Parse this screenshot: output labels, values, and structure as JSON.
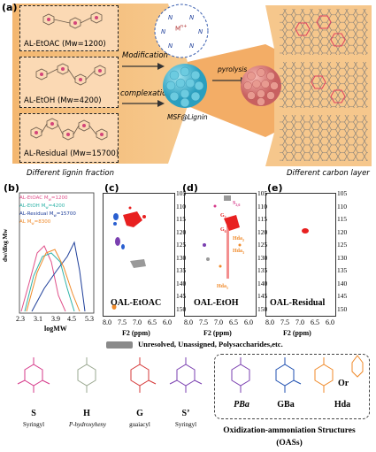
{
  "panel_a": {
    "letter": "(a)",
    "fractions": [
      {
        "label": "AL-EtOAC (Mw=1200)"
      },
      {
        "label": "AL-EtOH (Mw=4200)"
      },
      {
        "label": "AL-Residual (Mw=15700)"
      }
    ],
    "fraction_caption": "Different lignin fraction",
    "modification": "Modification",
    "complexation": "complexation",
    "pyrolysis": "pyrolysis",
    "msf_label": "MSF@Lignin",
    "metal_label": "M",
    "metal_charge": "n+",
    "carbon_caption": "Different carbon layer"
  },
  "panel_b": {
    "letter": "(b)",
    "ylabel": "dw/dlog Mw",
    "xlabel": "logMW",
    "ticks": [
      "2.3",
      "3.1",
      "3.9",
      "4.5",
      "5.3"
    ],
    "legend": [
      {
        "name": "AL-EtOAC",
        "sub": "M",
        "subsub": "w",
        "val": "=1200",
        "color": "#e0508a"
      },
      {
        "name": "AL-EtOH",
        "sub": "M",
        "subsub": "w",
        "val": "=4200",
        "color": "#2fb3a8"
      },
      {
        "name": "AL-Residual",
        "sub": "M",
        "subsub": "w",
        "val": "=15700",
        "color": "#1f3f9a"
      },
      {
        "name": "AL",
        "sub": "M",
        "subsub": "w",
        "val": "=8300",
        "color": "#f08a2a"
      }
    ]
  },
  "panel_c": {
    "letter": "(c)",
    "title": "OAL-EtOAC",
    "xlabel": "F2 (ppm)",
    "xticks": [
      "8.0",
      "7.0",
      "6.0"
    ],
    "xticks_half": [
      "7.5",
      "6.5"
    ]
  },
  "panel_d": {
    "letter": "(d)",
    "title": "OAL-EtOH",
    "xlabel": "F2 (ppm)",
    "labels": {
      "s26": "S",
      "s26_sub": "2,6",
      "g2": "G",
      "g2_sub": "2",
      "g6": "G",
      "g6_sub": "6",
      "hda2": "Hda",
      "hda2_sub": "2",
      "hda1": "Hda",
      "hda1_sub": "1",
      "hda3": "Hda",
      "hda3_sub": "3"
    }
  },
  "panel_e": {
    "letter": "(e)",
    "title": "OAL-Residual",
    "xlabel": "F2 (ppm)"
  },
  "nmr_yticks": [
    "105",
    "110",
    "115",
    "120",
    "125",
    "130",
    "135",
    "140",
    "145",
    "150"
  ],
  "nmr_xticks": [
    "8.0",
    "7.5",
    "7.0",
    "6.5",
    "6.0"
  ],
  "unresolved_label": "Unresolved, Unassigned, Polysaccharides,etc.",
  "structures": [
    {
      "letter": "S",
      "name": "Syringyl",
      "color": "#d63a8a"
    },
    {
      "letter": "H",
      "name": "P-hydroxyheny",
      "color": "#9aa890"
    },
    {
      "letter": "G",
      "name": "guaiacyl",
      "color": "#d63a3a"
    },
    {
      "letter": "S’",
      "name": "Syringyl",
      "color": "#7a3fb0"
    }
  ],
  "oas": {
    "items": [
      {
        "letter": "PBa",
        "color": "#7a3fb0"
      },
      {
        "letter": "GBa",
        "color": "#1f4fb0"
      },
      {
        "letter": "Hda",
        "color": "#f08a2a"
      }
    ],
    "or_label": "Or",
    "title": "Oxidization-ammoniation Structures",
    "abbr": "(OASs)"
  }
}
